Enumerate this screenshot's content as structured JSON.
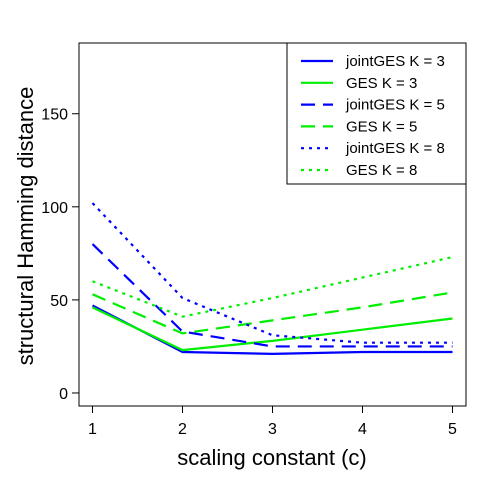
{
  "chart_data": {
    "type": "line",
    "title": "",
    "xlabel": "scaling constant (c)",
    "ylabel": "structural Hamming distance",
    "x": [
      1,
      2,
      3,
      4,
      5
    ],
    "xticks": [
      1,
      2,
      3,
      4,
      5
    ],
    "yticks": [
      0,
      50,
      100,
      150
    ],
    "xlim": [
      0.85,
      5.15
    ],
    "ylim": [
      -7,
      188
    ],
    "grid": false,
    "legend_position": "top-right",
    "series": [
      {
        "name": "jointGES K = 3",
        "color": "#0000FF",
        "dash": "solid",
        "values": [
          47,
          22,
          21,
          22,
          22
        ]
      },
      {
        "name": "GES K = 3",
        "color": "#00EE00",
        "dash": "solid",
        "values": [
          46,
          23,
          28,
          34,
          40
        ]
      },
      {
        "name": "jointGES K = 5",
        "color": "#0000FF",
        "dash": "dashed",
        "values": [
          80,
          33,
          25,
          25,
          25
        ]
      },
      {
        "name": "GES K = 5",
        "color": "#00EE00",
        "dash": "dashed",
        "values": [
          53,
          32,
          39,
          46,
          54
        ]
      },
      {
        "name": "jointGES K = 8",
        "color": "#0000FF",
        "dash": "dotted",
        "values": [
          102,
          51,
          31,
          27,
          27
        ]
      },
      {
        "name": "GES K = 8",
        "color": "#00EE00",
        "dash": "dotted",
        "values": [
          60,
          41,
          51,
          62,
          73
        ]
      }
    ]
  }
}
